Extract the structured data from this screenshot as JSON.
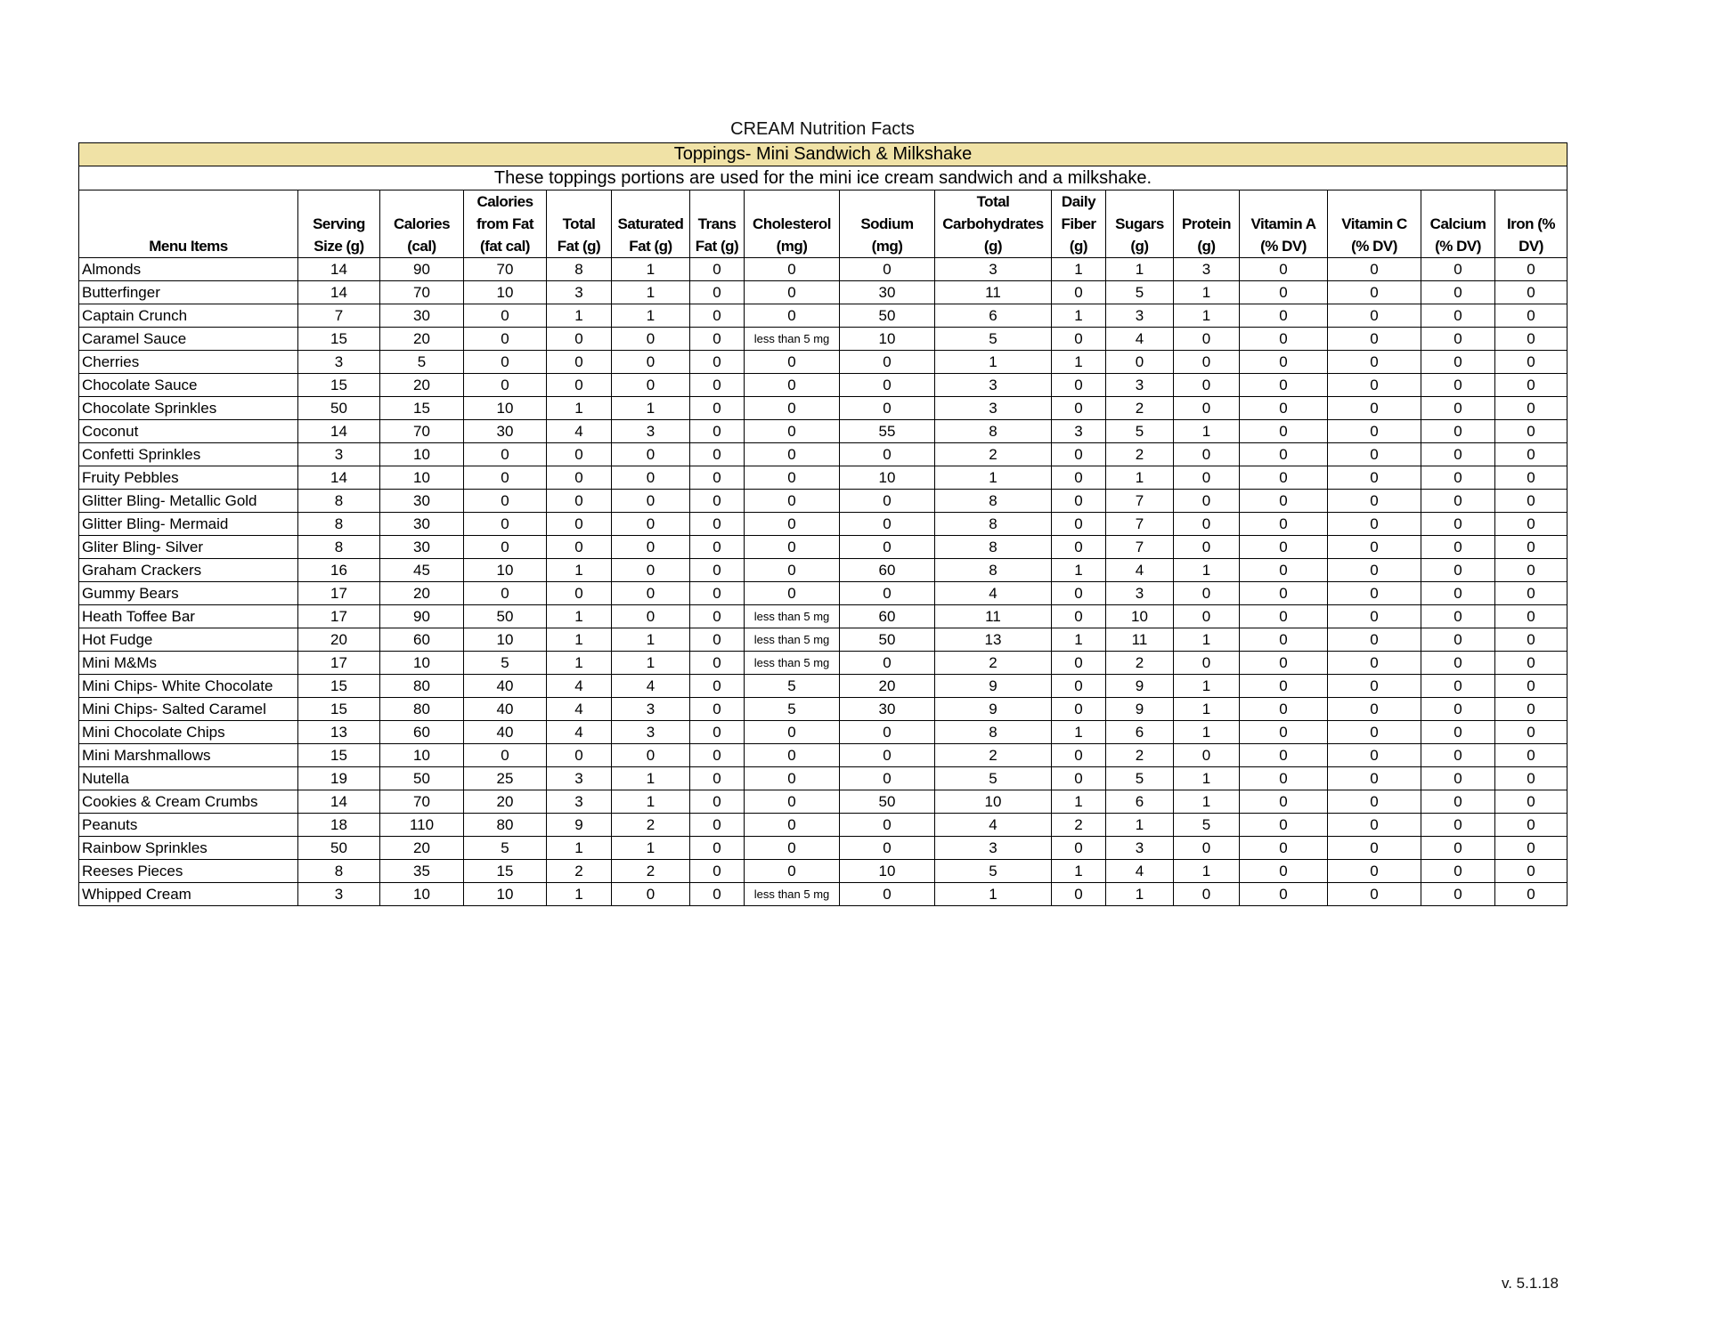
{
  "title": "CREAM Nutrition Facts",
  "section": "Toppings- Mini Sandwich & Milkshake",
  "note": "These toppings portions are used for the mini ice cream sandwich and a milkshake.",
  "table": {
    "headers": [
      "Menu Items",
      "Serving\nSize (g)",
      "Calories\n(cal)",
      "Calories\nfrom Fat\n(fat cal)",
      "Total\nFat (g)",
      "Saturated\nFat (g)",
      "Trans\nFat (g)",
      "Cholesterol\n(mg)",
      "Sodium\n(mg)",
      "Total\nCarbohydrates\n(g)",
      "Daily\nFiber\n(g)",
      "Sugars\n(g)",
      "Protein\n(g)",
      "Vitamin A\n(% DV)",
      "Vitamin C\n(% DV)",
      "Calcium\n(% DV)",
      "Iron   (%\nDV)"
    ],
    "rows": [
      [
        "Almonds",
        14,
        90,
        70,
        8,
        1,
        0,
        0,
        0,
        3,
        1,
        1,
        3,
        0,
        0,
        0,
        0
      ],
      [
        "Butterfinger",
        14,
        70,
        10,
        3,
        1,
        0,
        0,
        30,
        11,
        0,
        5,
        1,
        0,
        0,
        0,
        0
      ],
      [
        "Captain Crunch",
        7,
        30,
        0,
        1,
        1,
        0,
        0,
        50,
        6,
        1,
        3,
        1,
        0,
        0,
        0,
        0
      ],
      [
        "Caramel Sauce",
        15,
        20,
        0,
        0,
        0,
        0,
        "less than 5 mg",
        10,
        5,
        0,
        4,
        0,
        0,
        0,
        0,
        0
      ],
      [
        "Cherries",
        3,
        5,
        0,
        0,
        0,
        0,
        0,
        0,
        1,
        1,
        0,
        0,
        0,
        0,
        0,
        0
      ],
      [
        "Chocolate Sauce",
        15,
        20,
        0,
        0,
        0,
        0,
        0,
        0,
        3,
        0,
        3,
        0,
        0,
        0,
        0,
        0
      ],
      [
        "Chocolate Sprinkles",
        50,
        15,
        10,
        1,
        1,
        0,
        0,
        0,
        3,
        0,
        2,
        0,
        0,
        0,
        0,
        0
      ],
      [
        "Coconut",
        14,
        70,
        30,
        4,
        3,
        0,
        0,
        55,
        8,
        3,
        5,
        1,
        0,
        0,
        0,
        0
      ],
      [
        "Confetti Sprinkles",
        3,
        10,
        0,
        0,
        0,
        0,
        0,
        0,
        2,
        0,
        2,
        0,
        0,
        0,
        0,
        0
      ],
      [
        "Fruity Pebbles",
        14,
        10,
        0,
        0,
        0,
        0,
        0,
        10,
        1,
        0,
        1,
        0,
        0,
        0,
        0,
        0
      ],
      [
        "Glitter Bling- Metallic Gold",
        8,
        30,
        0,
        0,
        0,
        0,
        0,
        0,
        8,
        0,
        7,
        0,
        0,
        0,
        0,
        0
      ],
      [
        "Glitter Bling- Mermaid",
        8,
        30,
        0,
        0,
        0,
        0,
        0,
        0,
        8,
        0,
        7,
        0,
        0,
        0,
        0,
        0
      ],
      [
        "Gliter Bling- Silver",
        8,
        30,
        0,
        0,
        0,
        0,
        0,
        0,
        8,
        0,
        7,
        0,
        0,
        0,
        0,
        0
      ],
      [
        "Graham Crackers",
        16,
        45,
        10,
        1,
        0,
        0,
        0,
        60,
        8,
        1,
        4,
        1,
        0,
        0,
        0,
        0
      ],
      [
        "Gummy Bears",
        17,
        20,
        0,
        0,
        0,
        0,
        0,
        0,
        4,
        0,
        3,
        0,
        0,
        0,
        0,
        0
      ],
      [
        "Heath Toffee Bar",
        17,
        90,
        50,
        1,
        0,
        0,
        "less than 5 mg",
        60,
        11,
        0,
        10,
        0,
        0,
        0,
        0,
        0
      ],
      [
        "Hot Fudge",
        20,
        60,
        10,
        1,
        1,
        0,
        "less than 5 mg",
        50,
        13,
        1,
        11,
        1,
        0,
        0,
        0,
        0
      ],
      [
        "Mini M&Ms",
        17,
        10,
        5,
        1,
        1,
        0,
        "less than 5 mg",
        0,
        2,
        0,
        2,
        0,
        0,
        0,
        0,
        0
      ],
      [
        "Mini Chips- White Chocolate",
        15,
        80,
        40,
        4,
        4,
        0,
        5,
        20,
        9,
        0,
        9,
        1,
        0,
        0,
        0,
        0
      ],
      [
        "Mini Chips- Salted Caramel",
        15,
        80,
        40,
        4,
        3,
        0,
        5,
        30,
        9,
        0,
        9,
        1,
        0,
        0,
        0,
        0
      ],
      [
        "Mini Chocolate Chips",
        13,
        60,
        40,
        4,
        3,
        0,
        0,
        0,
        8,
        1,
        6,
        1,
        0,
        0,
        0,
        0
      ],
      [
        "Mini Marshmallows",
        15,
        10,
        0,
        0,
        0,
        0,
        0,
        0,
        2,
        0,
        2,
        0,
        0,
        0,
        0,
        0
      ],
      [
        "Nutella",
        19,
        50,
        25,
        3,
        1,
        0,
        0,
        0,
        5,
        0,
        5,
        1,
        0,
        0,
        0,
        0
      ],
      [
        "Cookies & Cream Crumbs",
        14,
        70,
        20,
        3,
        1,
        0,
        0,
        50,
        10,
        1,
        6,
        1,
        0,
        0,
        0,
        0
      ],
      [
        "Peanuts",
        18,
        110,
        80,
        9,
        2,
        0,
        0,
        0,
        4,
        2,
        1,
        5,
        0,
        0,
        0,
        0
      ],
      [
        "Rainbow Sprinkles",
        50,
        20,
        5,
        1,
        1,
        0,
        0,
        0,
        3,
        0,
        3,
        0,
        0,
        0,
        0,
        0
      ],
      [
        "Reeses Pieces",
        8,
        35,
        15,
        2,
        2,
        0,
        0,
        10,
        5,
        1,
        4,
        1,
        0,
        0,
        0,
        0
      ],
      [
        "Whipped Cream",
        3,
        10,
        10,
        1,
        0,
        0,
        "less than 5 mg",
        0,
        1,
        0,
        1,
        0,
        0,
        0,
        0,
        0
      ]
    ]
  },
  "version": "v. 5.1.18"
}
